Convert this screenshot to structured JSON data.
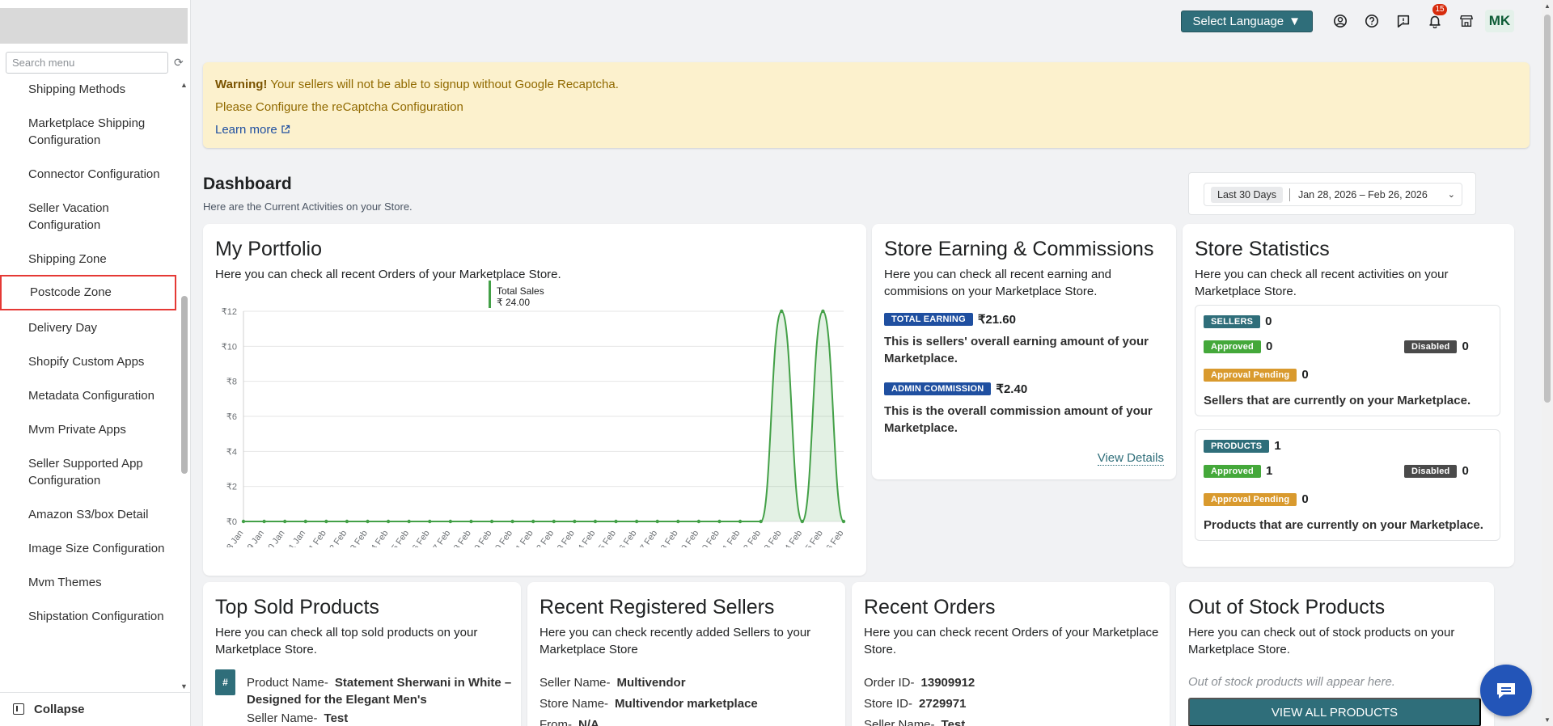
{
  "sidebar": {
    "search_placeholder": "Search menu",
    "items": [
      {
        "label": "Shipping Methods"
      },
      {
        "label": "Marketplace Shipping Configuration"
      },
      {
        "label": "Connector Configuration"
      },
      {
        "label": "Seller Vacation Configuration"
      },
      {
        "label": "Shipping Zone"
      },
      {
        "label": "Postcode Zone"
      },
      {
        "label": "Delivery Day"
      },
      {
        "label": "Shopify Custom Apps"
      },
      {
        "label": "Metadata Configuration"
      },
      {
        "label": "Mvm Private Apps"
      },
      {
        "label": "Seller Supported App Configuration"
      },
      {
        "label": "Amazon S3/box Detail"
      },
      {
        "label": "Image Size Configuration"
      },
      {
        "label": "Mvm Themes"
      },
      {
        "label": "Shipstation Configuration"
      }
    ],
    "collapse_label": "Collapse"
  },
  "topbar": {
    "language_label": "Select Language",
    "notification_count": "15",
    "avatar_initials": "MK"
  },
  "warning": {
    "strong": "Warning!",
    "line1": " Your sellers will not be able to signup without Google Recaptcha.",
    "line2": "Please Configure the reCaptcha Configuration",
    "learn_more": "Learn more"
  },
  "dashboard": {
    "title": "Dashboard",
    "subtitle": "Here are the Current Activities on your Store.",
    "range_pill": "Last 30 Days",
    "date_range": "Jan 28, 2026 – Feb 26, 2026"
  },
  "portfolio": {
    "title": "My Portfolio",
    "desc": "Here you can check all recent Orders of your Marketplace Store.",
    "legend_name": "Total Sales",
    "legend_value": "₹ 24.00"
  },
  "chart_data": {
    "type": "area",
    "categories": [
      "28 Jan",
      "29 Jan",
      "30 Jan",
      "31 Jan",
      "01 Feb",
      "02 Feb",
      "03 Feb",
      "04 Feb",
      "05 Feb",
      "06 Feb",
      "07 Feb",
      "08 Feb",
      "09 Feb",
      "10 Feb",
      "11 Feb",
      "12 Feb",
      "13 Feb",
      "14 Feb",
      "15 Feb",
      "16 Feb",
      "17 Feb",
      "18 Feb",
      "19 Feb",
      "20 Feb",
      "21 Feb",
      "22 Feb",
      "23 Feb",
      "24 Feb",
      "25 Feb",
      "26 Feb"
    ],
    "series": [
      {
        "name": "Total Sales",
        "values": [
          0,
          0,
          0,
          0,
          0,
          0,
          0,
          0,
          0,
          0,
          0,
          0,
          0,
          0,
          0,
          0,
          0,
          0,
          0,
          0,
          0,
          0,
          0,
          0,
          0,
          0,
          12,
          0,
          12,
          0
        ]
      }
    ],
    "y_ticks": [
      "₹0",
      "₹2",
      "₹4",
      "₹6",
      "₹8",
      "₹10",
      "₹12"
    ],
    "ylim": [
      0,
      12
    ],
    "grid": true,
    "color": "#43a047"
  },
  "earnings": {
    "title": "Store Earning & Commissions",
    "desc": "Here you can check all recent earning and commisions on your Marketplace Store.",
    "total_tag": "TOTAL EARNING",
    "total_value": "₹21.60",
    "total_note": "This is sellers' overall earning amount of your Marketplace.",
    "admin_tag": "ADMIN COMMISSION",
    "admin_value": "₹2.40",
    "admin_note": "This is the overall commission amount of your Marketplace.",
    "view_details": "View Details"
  },
  "statistics": {
    "title": "Store Statistics",
    "desc": "Here you can check all recent activities on your Marketplace Store.",
    "sellers": {
      "tag": "SELLERS",
      "count": "0",
      "approved_tag": "Approved",
      "approved": "0",
      "disabled_tag": "Disabled",
      "disabled": "0",
      "pending_tag": "Approval Pending",
      "pending": "0",
      "note": "Sellers that are currently on your Marketplace."
    },
    "products": {
      "tag": "PRODUCTS",
      "count": "1",
      "approved_tag": "Approved",
      "approved": "1",
      "disabled_tag": "Disabled",
      "disabled": "0",
      "pending_tag": "Approval Pending",
      "pending": "0",
      "note": "Products that are currently on your Marketplace."
    }
  },
  "top_sold": {
    "title": "Top Sold Products",
    "desc": "Here you can check all top sold products on your Marketplace Store.",
    "hash": "#",
    "product_key": "Product Name-",
    "product_value": "Statement Sherwani in White – Designed for the Elegant Men's",
    "seller_key": "Seller Name-",
    "seller_value": "Test"
  },
  "recent_sellers": {
    "title": "Recent Registered Sellers",
    "desc": "Here you can check recently added Sellers to your Marketplace Store",
    "seller_key": "Seller Name-",
    "seller_value": "Multivendor",
    "store_key": "Store Name-",
    "store_value": "Multivendor marketplace",
    "from_key": "From-",
    "from_value": "N/A"
  },
  "recent_orders": {
    "title": "Recent Orders",
    "desc": "Here you can check recent Orders of your Marketplace Store.",
    "order_key": "Order ID-",
    "order_value": "13909912",
    "store_key": "Store ID-",
    "store_value": "2729971",
    "seller_key": "Seller Name-",
    "seller_value": "Test"
  },
  "out_of_stock": {
    "title": "Out of Stock Products",
    "desc": "Here you can check out of stock products on your Marketplace Store.",
    "empty": "Out of stock products will appear here.",
    "button": "VIEW ALL PRODUCTS"
  }
}
